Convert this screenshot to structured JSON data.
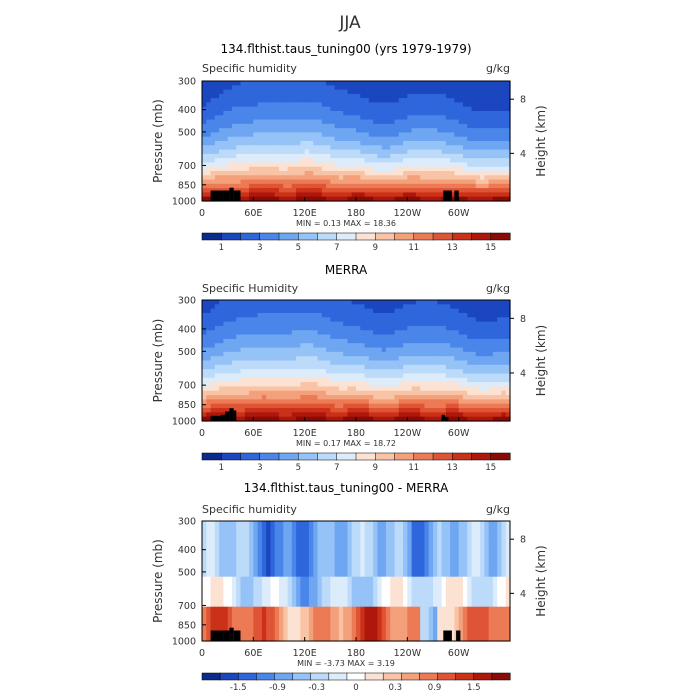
{
  "figure": {
    "title": "JJA"
  },
  "palettes": {
    "abs": [
      "#0a2a8c",
      "#1a46c0",
      "#2f66dc",
      "#4a86ea",
      "#6ea6f2",
      "#95c3f7",
      "#bcdaf9",
      "#dcecfb",
      "#fbe2d2",
      "#f9c3a5",
      "#f3a07b",
      "#eb7a55",
      "#df5434",
      "#cb3018",
      "#ad170c",
      "#8a0a05"
    ],
    "diff": [
      "#0a2a8c",
      "#1a46c0",
      "#2f66dc",
      "#4a86ea",
      "#6ea6f2",
      "#95c3f7",
      "#bcdaf9",
      "#dcecfb",
      "#ffffff",
      "#fbe2d2",
      "#f9c3a5",
      "#f3a07b",
      "#eb7a55",
      "#df5434",
      "#cb3018",
      "#ad170c",
      "#8a0a05"
    ]
  },
  "chart_data": [
    {
      "type": "heatmap",
      "title": "134.flthist.taus_tuning00 (yrs 1979-1979)",
      "left_label": "Specific humidity",
      "right_label": "g/kg",
      "ylabel": "Pressure (mb)",
      "y2label": "Height (km)",
      "x_ticks": [
        "0",
        "60E",
        "120E",
        "180",
        "120W",
        "60W"
      ],
      "y_ticks": [
        "300",
        "400",
        "500",
        "700",
        "850",
        "1000"
      ],
      "y2_ticks": [
        "8",
        "4"
      ],
      "stats": "MIN =     0.13   MAX =    18.36",
      "colorbar_labels": [
        "1",
        "3",
        "5",
        "7",
        "9",
        "11",
        "13",
        "15"
      ],
      "palette": "abs",
      "field": "abs",
      "surface": 0.72,
      "ylim_mb": [
        1000,
        300
      ],
      "xlim_deg": [
        0,
        360
      ],
      "terrain": [
        [
          10,
          25,
          900
        ],
        [
          25,
          32,
          900
        ],
        [
          32,
          37,
          875
        ],
        [
          37,
          45,
          900
        ],
        [
          282,
          292,
          900
        ],
        [
          295,
          300,
          900
        ]
      ]
    },
    {
      "type": "heatmap",
      "title": "MERRA",
      "left_label": "Specific Humidity",
      "right_label": "g/kg",
      "ylabel": "Pressure (mb)",
      "y2label": "Height (km)",
      "x_ticks": [
        "0",
        "60E",
        "120E",
        "180",
        "120W",
        "60W"
      ],
      "y_ticks": [
        "300",
        "400",
        "500",
        "700",
        "850",
        "1000"
      ],
      "y2_ticks": [
        "8",
        "4"
      ],
      "stats": "MIN =     0.17   MAX =    18.72",
      "colorbar_labels": [
        "1",
        "3",
        "5",
        "7",
        "9",
        "11",
        "13",
        "15"
      ],
      "palette": "abs",
      "field": "abs",
      "surface": 0.82,
      "ylim_mb": [
        1000,
        300
      ],
      "xlim_deg": [
        0,
        360
      ],
      "terrain": [
        [
          10,
          22,
          950
        ],
        [
          22,
          27,
          940
        ],
        [
          27,
          32,
          910
        ],
        [
          32,
          37,
          880
        ],
        [
          37,
          40,
          900
        ],
        [
          280,
          284,
          940
        ],
        [
          284,
          288,
          960
        ]
      ]
    },
    {
      "type": "heatmap",
      "title": "134.flthist.taus_tuning00 - MERRA",
      "left_label": "Specific humidity",
      "right_label": "g/kg",
      "ylabel": "Pressure (mb)",
      "y2label": "Height (km)",
      "x_ticks": [
        "0",
        "60E",
        "120E",
        "180",
        "120W",
        "60W"
      ],
      "y_ticks": [
        "300",
        "400",
        "500",
        "700",
        "850",
        "1000"
      ],
      "y2_ticks": [
        "8",
        "4"
      ],
      "stats": "MIN =   -3.73   MAX =    3.19",
      "colorbar_labels": [
        "-1.5",
        "-0.9",
        "-0.3",
        "0",
        "0.3",
        "0.9",
        "1.5"
      ],
      "palette": "diff",
      "field": "diff",
      "ylim_mb": [
        1000,
        300
      ],
      "xlim_deg": [
        0,
        360
      ],
      "terrain": [
        [
          10,
          25,
          900
        ],
        [
          25,
          32,
          900
        ],
        [
          32,
          37,
          875
        ],
        [
          37,
          45,
          900
        ],
        [
          282,
          292,
          900
        ],
        [
          297,
          302,
          900
        ]
      ]
    }
  ]
}
